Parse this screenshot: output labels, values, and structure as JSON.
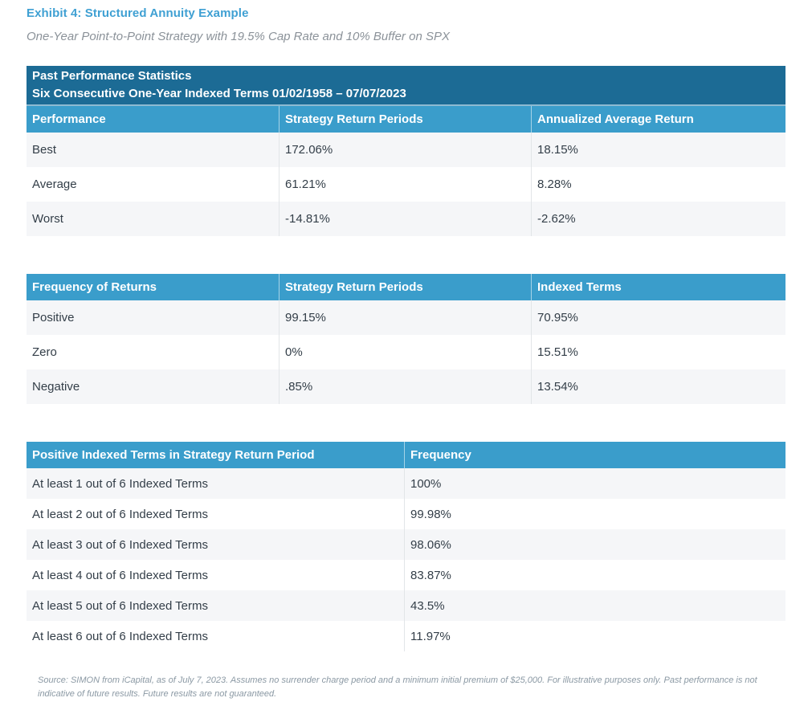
{
  "page": {
    "title": "Exhibit 4: Structured Annuity Example",
    "subtitle": "One-Year Point-to-Point Strategy with 19.5% Cap Rate and 10% Buffer on SPX",
    "source_note": "Source: SIMON from iCapital, as of July 7, 2023. Assumes no surrender charge period and a minimum initial premium of $25,000. For illustrative purposes only. Past performance is not indicative of future results. Future results are not guaranteed."
  },
  "colors": {
    "title_blue": "#3fa0d3",
    "banner_dark_blue": "#1c6b95",
    "header_blue": "#3a9dcb",
    "row_stripe_gray": "#f5f6f8",
    "body_text": "#333e48",
    "muted_gray": "#8b9299"
  },
  "tables": [
    {
      "banner": [
        "Past Performance Statistics",
        "Six Consecutive One-Year Indexed Terms 01/02/1958 – 07/07/2023"
      ],
      "columns": [
        "Performance",
        "Strategy Return Periods",
        "Annualized Average Return"
      ],
      "rows": [
        [
          "Best",
          "172.06%",
          "18.15%"
        ],
        [
          "Average",
          "61.21%",
          "8.28%"
        ],
        [
          "Worst",
          "-14.81%",
          "-2.62%"
        ]
      ]
    },
    {
      "columns": [
        "Frequency of Returns",
        "Strategy Return Periods",
        "Indexed Terms"
      ],
      "rows": [
        [
          "Positive",
          "99.15%",
          "70.95%"
        ],
        [
          "Zero",
          "0%",
          "15.51%"
        ],
        [
          "Negative",
          ".85%",
          "13.54%"
        ]
      ]
    },
    {
      "columns": [
        "Positive Indexed Terms in Strategy Return Period",
        "Frequency"
      ],
      "rows": [
        [
          "At least 1 out of 6 Indexed Terms",
          "100%"
        ],
        [
          "At least 2 out of 6 Indexed Terms",
          "99.98%"
        ],
        [
          "At least 3 out of 6 Indexed Terms",
          "98.06%"
        ],
        [
          "At least 4 out of 6 Indexed Terms",
          "83.87%"
        ],
        [
          "At least 5 out of 6 Indexed Terms",
          "43.5%"
        ],
        [
          "At least 6 out of 6 Indexed Terms",
          "11.97%"
        ]
      ]
    }
  ]
}
